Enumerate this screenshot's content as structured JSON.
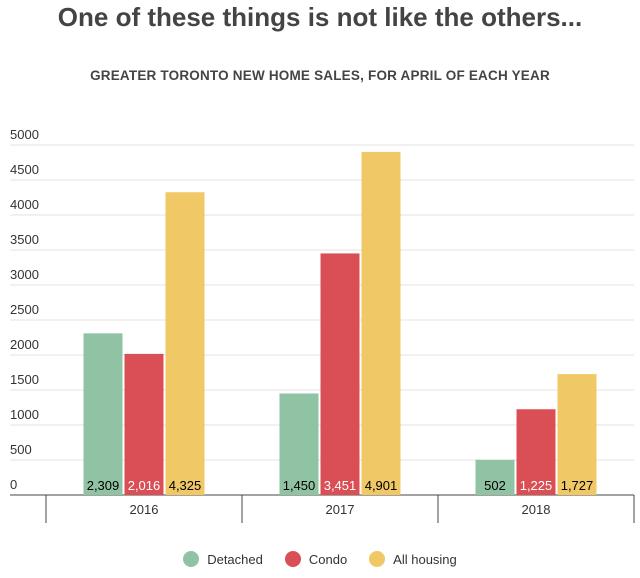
{
  "headline": "One of these things is not like the others...",
  "chart_data": {
    "type": "bar",
    "title": "GREATER TORONTO NEW HOME SALES, FOR APRIL OF EACH YEAR",
    "xlabel": "",
    "ylabel": "",
    "categories": [
      "2016",
      "2017",
      "2018"
    ],
    "ylim": [
      0,
      5000
    ],
    "yticks": [
      "0",
      "500",
      "1000",
      "1500",
      "2000",
      "2500",
      "3000",
      "3500",
      "4000",
      "4500",
      "5000"
    ],
    "grid": true,
    "legend_position": "bottom",
    "series": [
      {
        "name": "Detached",
        "color": "#8fc3a3",
        "values": [
          2309,
          1450,
          502
        ],
        "labels": [
          "2,309",
          "1,450",
          "502"
        ],
        "label_color": "#000000"
      },
      {
        "name": "Condo",
        "color": "#d94f55",
        "values": [
          2016,
          3451,
          1225
        ],
        "labels": [
          "2,016",
          "3,451",
          "1,225"
        ],
        "label_color": "#ffffff"
      },
      {
        "name": "All housing",
        "color": "#f0c865",
        "values": [
          4325,
          4901,
          1727
        ],
        "labels": [
          "4,325",
          "4,901",
          "1,727"
        ],
        "label_color": "#000000"
      }
    ]
  }
}
